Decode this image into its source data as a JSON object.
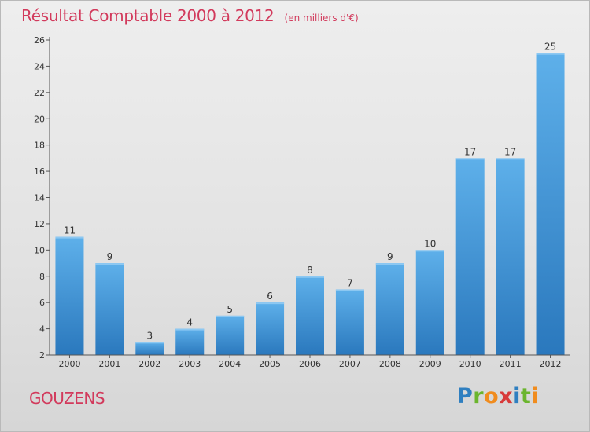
{
  "title": "Résultat Comptable 2000 à 2012",
  "unit": "(en milliers d'€)",
  "place": "GOUZENS",
  "logo": {
    "letters": [
      "P",
      "r",
      "o",
      "x",
      "i",
      "t",
      "i"
    ],
    "colors": [
      "#2f7fc0",
      "#6bb52e",
      "#f08c1e",
      "#d83a3a",
      "#2f7fc0",
      "#6bb52e",
      "#f08c1e"
    ]
  },
  "colors": {
    "title": "#d23a5c",
    "bar_top": "#5eb0ea",
    "bar_bottom": "#2a78bd",
    "axis": "#555555"
  },
  "chart_data": {
    "type": "bar",
    "title": "Résultat Comptable 2000 à 2012",
    "categories": [
      "2000",
      "2001",
      "2002",
      "2003",
      "2004",
      "2005",
      "2006",
      "2007",
      "2008",
      "2009",
      "2010",
      "2011",
      "2012"
    ],
    "values": [
      11,
      9,
      3,
      4,
      5,
      6,
      8,
      7,
      9,
      10,
      17,
      17,
      25
    ],
    "ylim": [
      2,
      26
    ],
    "yticks": [
      2,
      4,
      6,
      8,
      10,
      12,
      14,
      16,
      18,
      20,
      22,
      24,
      26
    ],
    "grid": false,
    "data_labels": true
  }
}
